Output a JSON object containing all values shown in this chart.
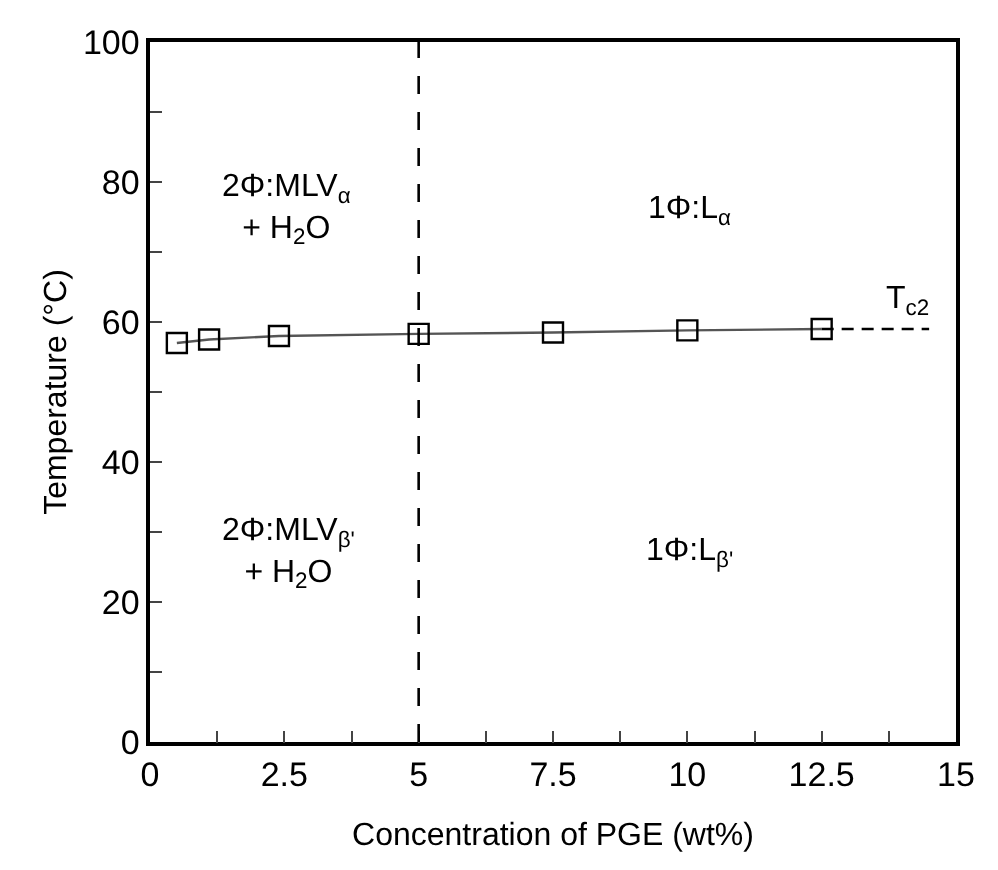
{
  "chart_data": {
    "type": "line",
    "xlabel": "Concentration of PGE (wt%)",
    "ylabel": "Temperature (°C)",
    "xlim": [
      0,
      15
    ],
    "ylim": [
      0,
      100
    ],
    "xticks": [
      0,
      {
        "value": 1.25,
        "label": null
      },
      {
        "value": 2.5,
        "label": "2.5"
      },
      {
        "value": 3.75,
        "label": null
      },
      5,
      {
        "value": 6.25,
        "label": null
      },
      {
        "value": 7.5,
        "label": "7.5"
      },
      {
        "value": 8.75,
        "label": null
      },
      10,
      {
        "value": 11.25,
        "label": null
      },
      {
        "value": 12.5,
        "label": "12.5"
      },
      {
        "value": 13.75,
        "label": null
      },
      15
    ],
    "yticks": [
      0,
      {
        "value": 10,
        "label": null
      },
      20,
      {
        "value": 30,
        "label": null
      },
      40,
      {
        "value": 50,
        "label": null
      },
      60,
      {
        "value": 70,
        "label": null
      },
      80,
      {
        "value": 90,
        "label": null
      },
      100
    ],
    "series": [
      {
        "x": [
          0.5,
          1.1,
          2.4,
          5,
          7.5,
          10,
          12.5
        ],
        "values": [
          57,
          57.5,
          58,
          58.3,
          58.5,
          58.8,
          59
        ],
        "color": "#555555",
        "marker": "square",
        "line_style": "solid"
      },
      {
        "x": [
          12.5,
          14.5
        ],
        "values": [
          59,
          59
        ],
        "color": "#000000",
        "line_style": "dashed"
      }
    ],
    "ref_lines": [
      {
        "axis": "x",
        "value": 5,
        "label": null,
        "color": "#000000",
        "line_style": "dashed"
      }
    ],
    "annotations": [
      "2Φ:MLV$_{α}$\n+ H$_{2}$O",
      "1Φ:L$_{α}$",
      "2Φ:MLV$_{β'}$\n+ H$_{2}$O",
      "1Φ:L$_{β'}$",
      "T$_{c2}$"
    ]
  }
}
